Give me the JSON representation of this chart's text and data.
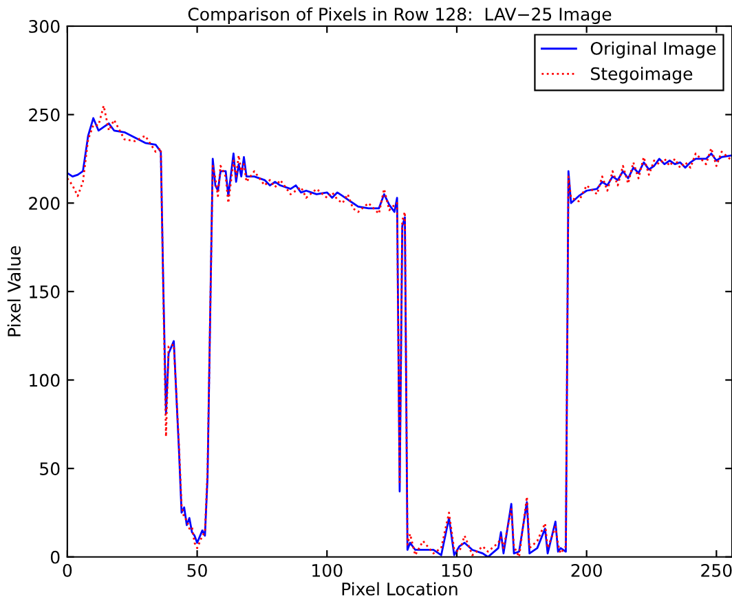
{
  "chart_data": {
    "type": "line",
    "title": "Comparison of Pixels in Row 128:  LAV−25 Image",
    "xlabel": "Pixel Location",
    "ylabel": "Pixel Value",
    "x": [
      0,
      2,
      4,
      6,
      8,
      10,
      12,
      14,
      16,
      18,
      22,
      26,
      30,
      34,
      36,
      37,
      38,
      39,
      41,
      43,
      44,
      45,
      46,
      47,
      48,
      49,
      50,
      52,
      53,
      54,
      56,
      57,
      58,
      59,
      61,
      62,
      64,
      65,
      66,
      67,
      68,
      69,
      72,
      76,
      78,
      80,
      82,
      86,
      88,
      90,
      92,
      96,
      100,
      102,
      104,
      106,
      108,
      110,
      112,
      116,
      120,
      122,
      124,
      126,
      127,
      128,
      129,
      130,
      131,
      132,
      134,
      137,
      141,
      144,
      147,
      149,
      151,
      153,
      156,
      160,
      162,
      166,
      167,
      168,
      171,
      172,
      174,
      177,
      178,
      181,
      184,
      185,
      188,
      189,
      190,
      192,
      193,
      194,
      197,
      200,
      204,
      206,
      208,
      210,
      212,
      214,
      216,
      218,
      220,
      222,
      224,
      226,
      228,
      230,
      232,
      234,
      236,
      238,
      240,
      242,
      246,
      248,
      250,
      252,
      256
    ],
    "series": [
      {
        "name": "Original Image",
        "color": "#0000ff",
        "line_style": "solid",
        "values": [
          217,
          215,
          216,
          218,
          238,
          248,
          241,
          243,
          245,
          241,
          240,
          237,
          234,
          233,
          229,
          150,
          81,
          115,
          122,
          60,
          25,
          28,
          18,
          22,
          14,
          12,
          8,
          15,
          12,
          45,
          225,
          210,
          207,
          218,
          218,
          204,
          228,
          212,
          222,
          215,
          226,
          215,
          215,
          213,
          210,
          212,
          210,
          208,
          210,
          206,
          207,
          205,
          206,
          203,
          206,
          204,
          202,
          200,
          198,
          197,
          197,
          205,
          199,
          195,
          203,
          37,
          187,
          192,
          4,
          8,
          4,
          4,
          4,
          1,
          22,
          1,
          6,
          8,
          4,
          2,
          0,
          5,
          14,
          2,
          30,
          2,
          3,
          31,
          2,
          5,
          16,
          2,
          20,
          3,
          5,
          3,
          218,
          200,
          204,
          207,
          208,
          212,
          210,
          215,
          213,
          218,
          214,
          220,
          217,
          223,
          219,
          221,
          225,
          222,
          224,
          222,
          223,
          220,
          223,
          225,
          225,
          228,
          224,
          226,
          227
        ]
      },
      {
        "name": "Stegoimage",
        "color": "#ff0000",
        "line_style": "dotted",
        "values": [
          214,
          210,
          204,
          212,
          236,
          244,
          244,
          255,
          241,
          247,
          236,
          235,
          238,
          229,
          231,
          146,
          68,
          119,
          120,
          63,
          29,
          22,
          21,
          16,
          17,
          8,
          5,
          12,
          14,
          49,
          221,
          214,
          204,
          221,
          215,
          200,
          224,
          215,
          227,
          218,
          222,
          212,
          218,
          210,
          213,
          209,
          213,
          205,
          207,
          209,
          203,
          208,
          203,
          206,
          202,
          200,
          205,
          197,
          195,
          200,
          194,
          208,
          196,
          199,
          200,
          41,
          190,
          195,
          7,
          13,
          1,
          9,
          2,
          5,
          25,
          4,
          3,
          12,
          1,
          6,
          3,
          8,
          11,
          5,
          27,
          6,
          0,
          34,
          5,
          9,
          19,
          5,
          17,
          7,
          2,
          6,
          215,
          203,
          201,
          210,
          205,
          215,
          207,
          218,
          210,
          221,
          211,
          223,
          214,
          226,
          216,
          224,
          222,
          225,
          221,
          225,
          220,
          223,
          220,
          228,
          222,
          231,
          221,
          229,
          224
        ]
      }
    ],
    "xlim": [
      0,
      256
    ],
    "ylim": [
      0,
      300
    ],
    "xticks": [
      0,
      50,
      100,
      150,
      200,
      250
    ],
    "yticks": [
      0,
      50,
      100,
      150,
      200,
      250,
      300
    ],
    "legend": "top right",
    "grid": false
  }
}
